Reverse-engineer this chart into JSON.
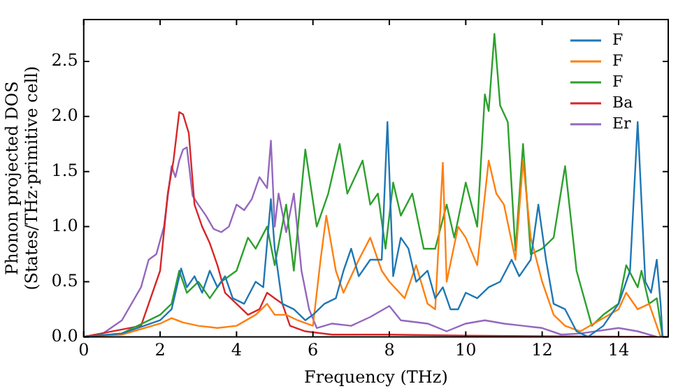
{
  "chart_data": {
    "type": "line",
    "xlabel": "Frequency (THz)",
    "ylabel": "Phonon projected DOS\n(States/THz·primitive cell)",
    "xlim": [
      0,
      15.3
    ],
    "xticks": [
      0,
      2,
      4,
      6,
      8,
      10,
      12,
      14
    ],
    "ylim": [
      0,
      2.88
    ],
    "yticks": [
      {
        "value": 0,
        "label": "0.0"
      },
      0.5,
      {
        "value": 1,
        "label": "1.0"
      },
      1.5,
      {
        "value": 2,
        "label": "2.0"
      },
      2.5
    ],
    "legend": "top right",
    "series": [
      {
        "name": "F",
        "color": "#1f77b4",
        "x": [
          0,
          1,
          2,
          2.3,
          2.55,
          2.7,
          2.9,
          3.1,
          3.3,
          3.5,
          3.7,
          3.9,
          4.2,
          4.5,
          4.7,
          4.9,
          5.0,
          5.2,
          5.5,
          5.8,
          6.0,
          6.3,
          6.6,
          6.8,
          7.0,
          7.2,
          7.5,
          7.8,
          7.95,
          8.1,
          8.3,
          8.5,
          8.7,
          9.0,
          9.2,
          9.4,
          9.6,
          9.8,
          10.0,
          10.3,
          10.6,
          10.9,
          11.2,
          11.4,
          11.7,
          11.9,
          12.1,
          12.3,
          12.6,
          12.9,
          13.2,
          13.6,
          14.0,
          14.3,
          14.5,
          14.7,
          14.85,
          15.0,
          15.1,
          15.15
        ],
        "values": [
          0,
          0.03,
          0.15,
          0.25,
          0.62,
          0.45,
          0.55,
          0.4,
          0.6,
          0.45,
          0.55,
          0.35,
          0.3,
          0.5,
          0.45,
          1.25,
          0.8,
          0.3,
          0.25,
          0.15,
          0.2,
          0.3,
          0.35,
          0.6,
          0.8,
          0.55,
          0.7,
          0.7,
          1.95,
          0.55,
          0.9,
          0.8,
          0.5,
          0.6,
          0.35,
          0.45,
          0.25,
          0.25,
          0.4,
          0.35,
          0.45,
          0.5,
          0.7,
          0.55,
          0.7,
          1.2,
          0.7,
          0.3,
          0.25,
          0.05,
          0.0,
          0.1,
          0.3,
          0.6,
          1.95,
          0.5,
          0.4,
          0.7,
          0.3,
          0.0
        ]
      },
      {
        "name": "F",
        "color": "#ff7f0e",
        "x": [
          0,
          1,
          2,
          2.3,
          2.6,
          3.0,
          3.5,
          4.0,
          4.5,
          4.8,
          5.0,
          5.3,
          5.6,
          6.0,
          6.2,
          6.35,
          6.6,
          6.8,
          7.2,
          7.5,
          7.8,
          8.0,
          8.4,
          8.7,
          9.0,
          9.2,
          9.4,
          9.5,
          9.8,
          10.0,
          10.3,
          10.6,
          10.8,
          11.0,
          11.3,
          11.5,
          11.7,
          12.0,
          12.3,
          12.6,
          13.0,
          13.5,
          14.0,
          14.2,
          14.5,
          14.8,
          15.1
        ],
        "values": [
          0,
          0.02,
          0.12,
          0.17,
          0.13,
          0.1,
          0.08,
          0.1,
          0.2,
          0.3,
          0.2,
          0.2,
          0.15,
          0.1,
          0.7,
          1.1,
          0.6,
          0.4,
          0.7,
          0.9,
          0.6,
          0.5,
          0.35,
          0.65,
          0.3,
          0.25,
          1.58,
          0.5,
          1.0,
          0.9,
          0.65,
          1.6,
          1.3,
          1.2,
          0.7,
          1.6,
          0.9,
          0.5,
          0.2,
          0.1,
          0.05,
          0.15,
          0.25,
          0.4,
          0.25,
          0.3,
          0.0
        ]
      },
      {
        "name": "F",
        "color": "#2ca02c",
        "x": [
          0,
          1,
          2,
          2.3,
          2.5,
          2.7,
          3.0,
          3.3,
          3.6,
          4.0,
          4.3,
          4.5,
          4.8,
          5.0,
          5.3,
          5.5,
          5.8,
          6.1,
          6.4,
          6.7,
          6.9,
          7.3,
          7.5,
          7.7,
          7.9,
          8.1,
          8.3,
          8.6,
          8.9,
          9.2,
          9.5,
          9.7,
          10.0,
          10.3,
          10.5,
          10.6,
          10.75,
          10.9,
          11.1,
          11.3,
          11.5,
          11.7,
          12.0,
          12.3,
          12.6,
          12.9,
          13.3,
          13.6,
          14.0,
          14.2,
          14.5,
          14.6,
          14.8,
          15.0,
          15.15
        ],
        "values": [
          0,
          0.03,
          0.2,
          0.3,
          0.6,
          0.4,
          0.5,
          0.35,
          0.5,
          0.6,
          0.9,
          0.8,
          1.0,
          0.65,
          1.2,
          0.6,
          1.7,
          1.0,
          1.3,
          1.75,
          1.3,
          1.6,
          1.2,
          1.3,
          0.8,
          1.4,
          1.1,
          1.3,
          0.8,
          0.8,
          1.2,
          0.9,
          1.4,
          1.0,
          2.2,
          2.05,
          2.75,
          2.1,
          1.95,
          0.78,
          1.75,
          0.75,
          0.8,
          0.9,
          1.55,
          0.6,
          0.1,
          0.2,
          0.3,
          0.65,
          0.45,
          0.6,
          0.3,
          0.35,
          0.0
        ]
      },
      {
        "name": "Ba",
        "color": "#d62728",
        "x": [
          0,
          1.5,
          2.0,
          2.2,
          2.35,
          2.5,
          2.6,
          2.75,
          2.9,
          3.1,
          3.3,
          3.5,
          3.7,
          4.0,
          4.3,
          4.6,
          4.8,
          5.0,
          5.2,
          5.4,
          5.8,
          6.5,
          8,
          10,
          15
        ],
        "values": [
          0,
          0.1,
          0.6,
          1.3,
          1.6,
          2.04,
          2.02,
          1.85,
          1.2,
          1.0,
          0.85,
          0.65,
          0.4,
          0.3,
          0.2,
          0.25,
          0.4,
          0.35,
          0.3,
          0.1,
          0.05,
          0.02,
          0.02,
          0.01,
          0
        ]
      },
      {
        "name": "Er",
        "color": "#9467bd",
        "x": [
          0,
          0.5,
          1.0,
          1.5,
          1.7,
          1.9,
          2.1,
          2.3,
          2.4,
          2.5,
          2.6,
          2.7,
          2.85,
          3.0,
          3.2,
          3.4,
          3.6,
          3.8,
          4.0,
          4.2,
          4.4,
          4.6,
          4.8,
          4.9,
          5.0,
          5.1,
          5.3,
          5.5,
          5.7,
          5.9,
          6.1,
          6.5,
          7.0,
          7.5,
          8.0,
          8.3,
          9.0,
          9.5,
          10,
          10.5,
          11,
          11.5,
          12,
          12.5,
          13,
          14,
          14.5,
          15
        ],
        "values": [
          0,
          0.03,
          0.15,
          0.45,
          0.7,
          0.75,
          1.0,
          1.55,
          1.45,
          1.6,
          1.7,
          1.72,
          1.28,
          1.2,
          1.1,
          0.98,
          0.95,
          1.0,
          1.2,
          1.15,
          1.25,
          1.45,
          1.35,
          1.78,
          1.0,
          1.3,
          0.95,
          1.3,
          0.6,
          0.25,
          0.08,
          0.12,
          0.1,
          0.18,
          0.28,
          0.15,
          0.12,
          0.05,
          0.12,
          0.15,
          0.12,
          0.1,
          0.08,
          0.02,
          0.03,
          0.08,
          0.05,
          0
        ]
      }
    ]
  }
}
